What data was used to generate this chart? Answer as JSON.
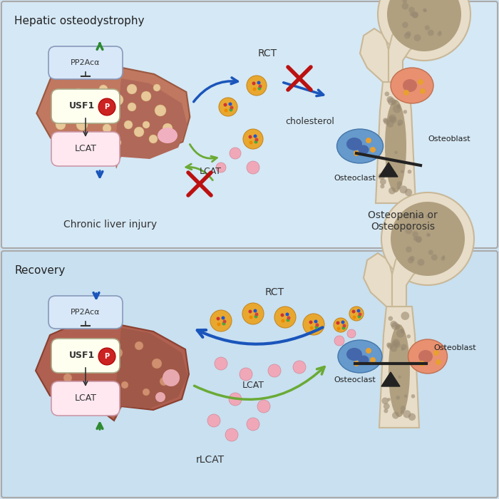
{
  "bg_color": "#cfe2f0",
  "panel_top_bg": "#d8eaf6",
  "panel_bot_bg": "#cce4f4",
  "border_color": "#999999",
  "top_label": "Hepatic osteodystrophy",
  "bottom_label": "Recovery",
  "top_sublabel1": "Chronic liver injury",
  "top_sublabel2": "Osteopenia or\nOsteoporosis",
  "bottom_sublabel1": "rLCAT",
  "pp2a_label": "PP2Acα",
  "usf1_label": "USF1",
  "lcat_box_label": "LCAT",
  "rct_label": "RCT",
  "lcat_label": "LCAT",
  "cholesterol_label": "cholesterol",
  "osteoblast_label": "Osteoblast",
  "osteoclast_label": "Osteoclast",
  "blue_arrow": "#1a55bb",
  "green_arrow": "#6aaa35",
  "red_x": "#bb1111",
  "bone_outer": "#e8ddc8",
  "bone_inner": "#c8b898",
  "bone_spongy": "#b8a888"
}
